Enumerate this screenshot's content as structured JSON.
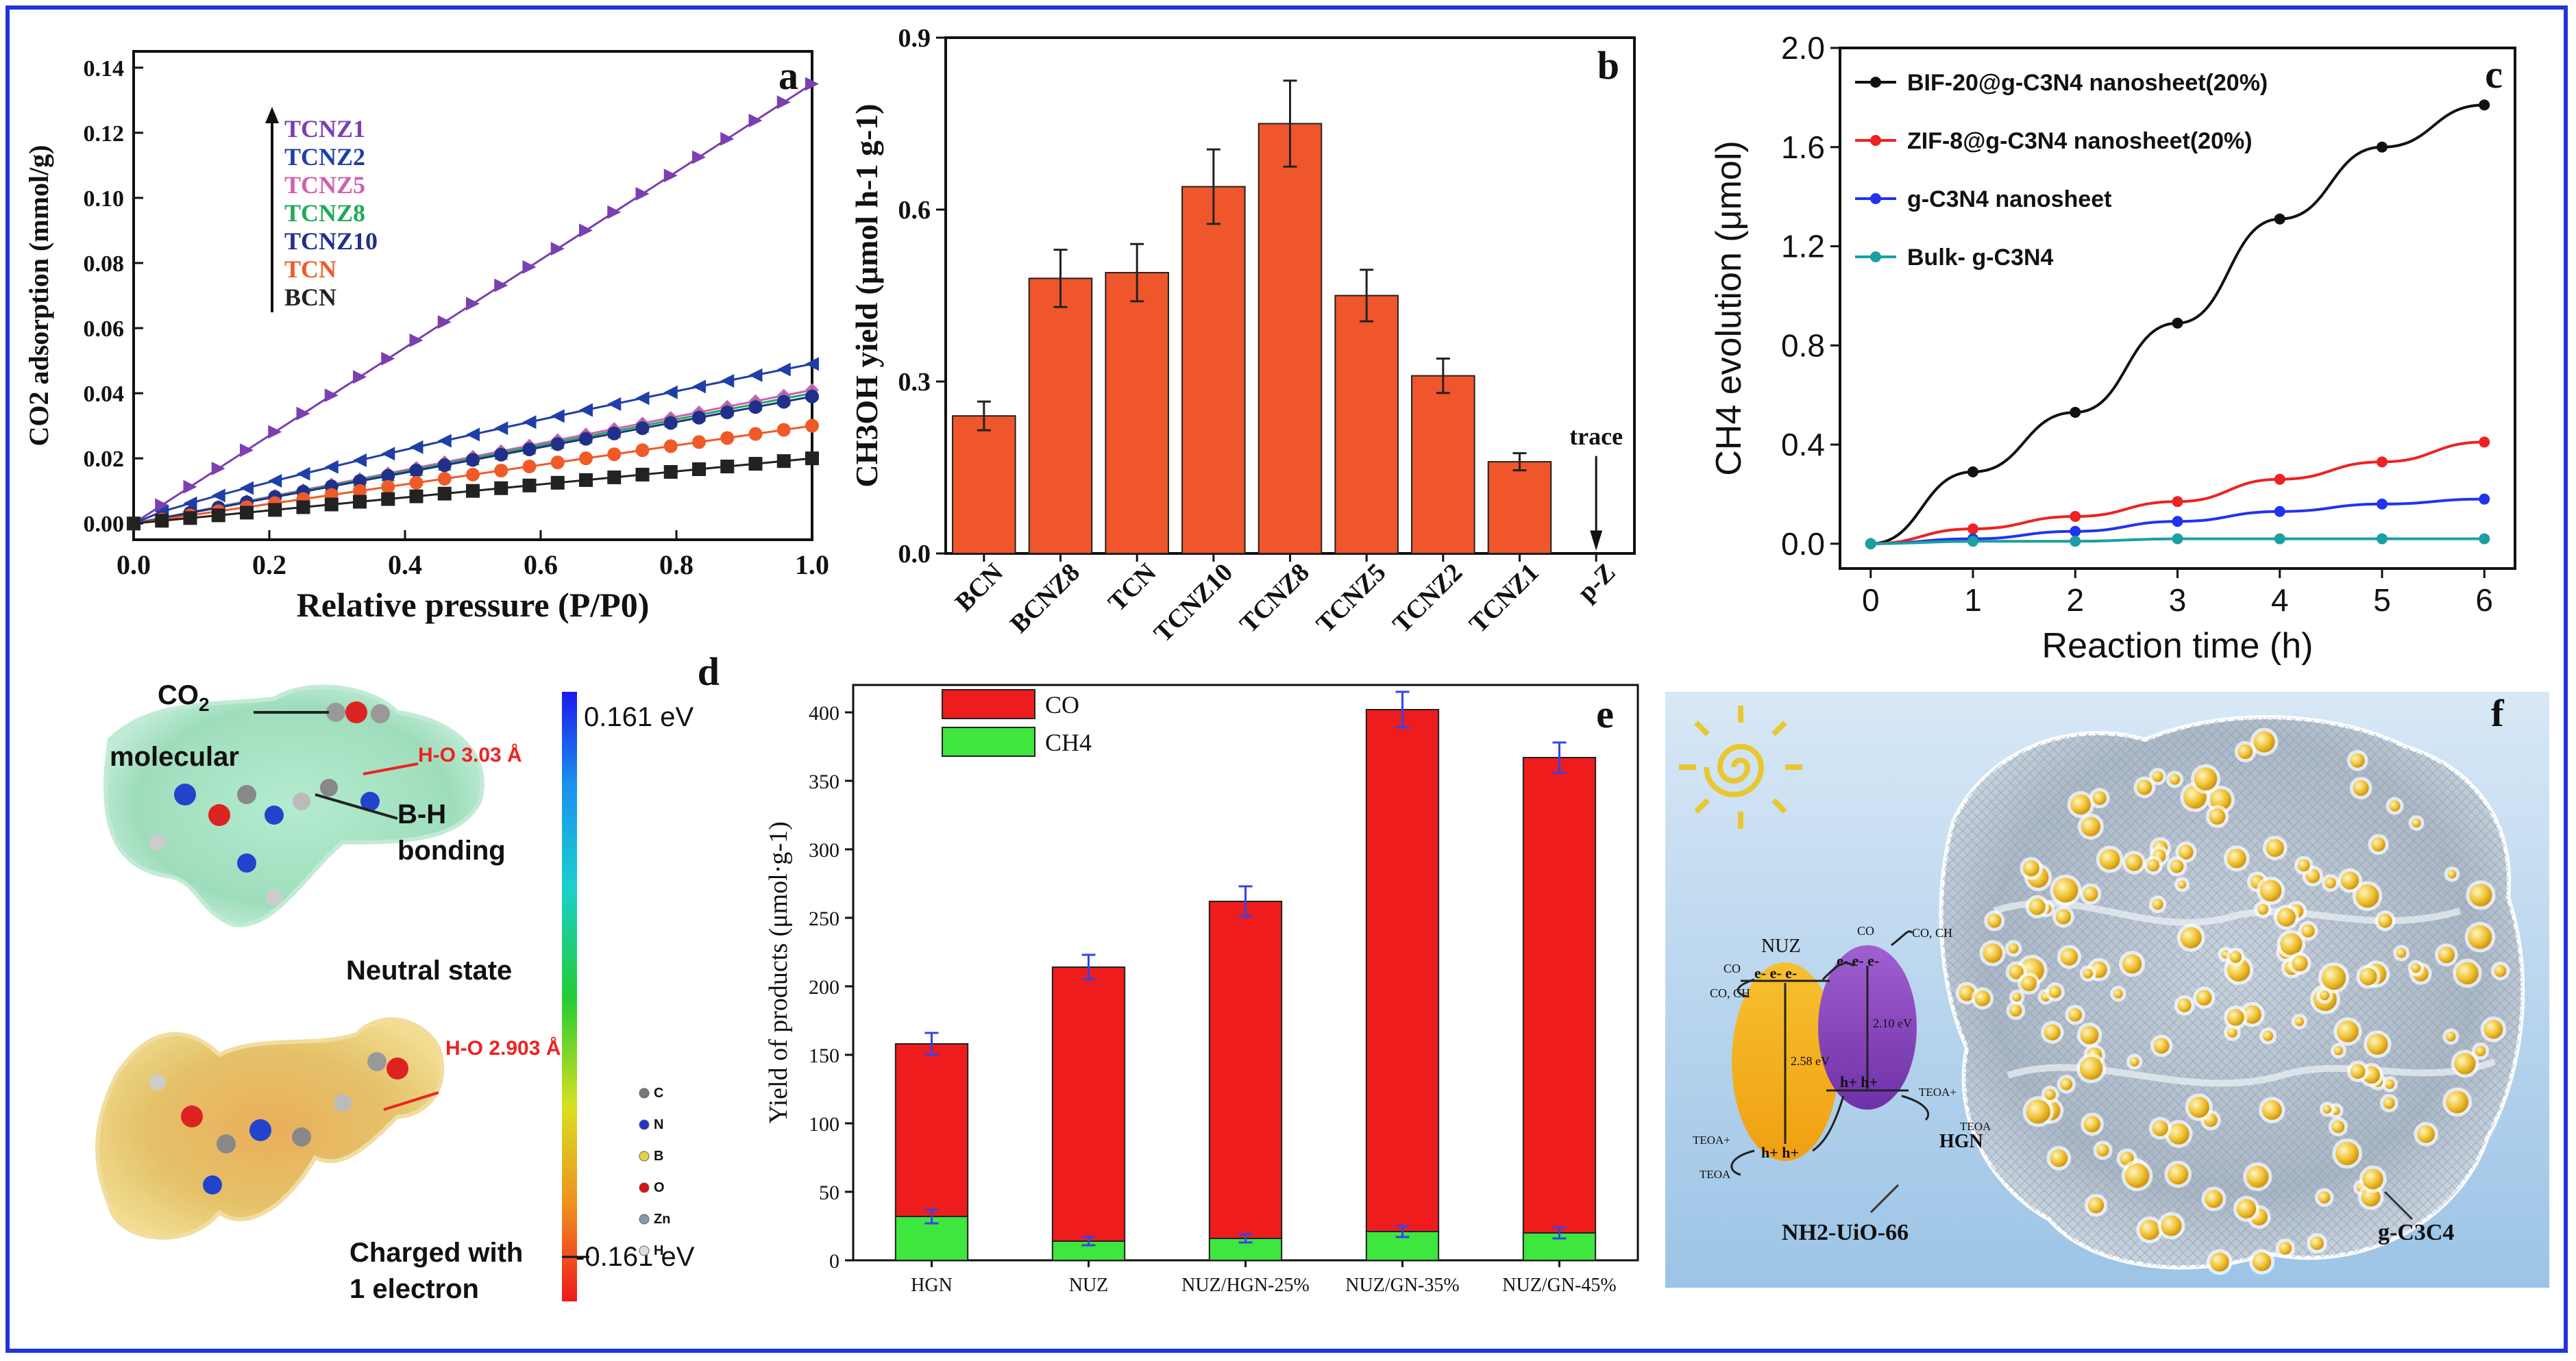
{
  "figure": {
    "border_color": "#2233d8",
    "panel_letters": [
      "a",
      "b",
      "c",
      "d",
      "e",
      "f"
    ]
  },
  "chart_data": [
    {
      "id": "a",
      "type": "scatter",
      "panel_letter": "a",
      "title": "",
      "xlabel": "Relative pressure (P/P0)",
      "ylabel": "CO2 adsorption (mmol/g)",
      "xlim": [
        0,
        1.0
      ],
      "ylim": [
        -0.005,
        0.145
      ],
      "xticks": [
        "0.0",
        "0.2",
        "0.4",
        "0.6",
        "0.8",
        "1.0"
      ],
      "yticks": [
        "0.00",
        "0.02",
        "0.04",
        "0.06",
        "0.08",
        "0.10",
        "0.12",
        "0.14"
      ],
      "legend_arrow": true,
      "series": [
        {
          "name": "TCNZ1",
          "color": "#7b3fb0",
          "marker": "triangle-right",
          "end": 0.135
        },
        {
          "name": "TCNZ2",
          "color": "#1f3fa8",
          "marker": "triangle-left",
          "end": 0.049
        },
        {
          "name": "TCNZ5",
          "color": "#d060b0",
          "marker": "diamond",
          "end": 0.041
        },
        {
          "name": "TCNZ8",
          "color": "#1faa5a",
          "marker": "triangle-up",
          "end": 0.04
        },
        {
          "name": "TCNZ10",
          "color": "#20308a",
          "marker": "circle",
          "end": 0.039
        },
        {
          "name": "TCN",
          "color": "#f05a28",
          "marker": "circle",
          "end": 0.03
        },
        {
          "name": "BCN",
          "color": "#222222",
          "marker": "square",
          "end": 0.02
        }
      ]
    },
    {
      "id": "b",
      "type": "bar",
      "panel_letter": "b",
      "xlabel": "",
      "ylabel": "CH3OH yield (μmol h-1 g-1)",
      "ylim": [
        0,
        0.9
      ],
      "yticks": [
        "0.0",
        "0.3",
        "0.6",
        "0.9"
      ],
      "categories": [
        "BCN",
        "BCNZ8",
        "TCN",
        "TCNZ10",
        "TCNZ8",
        "TCNZ5",
        "TCNZ2",
        "TCNZ1",
        "p-Z"
      ],
      "values": [
        0.24,
        0.48,
        0.49,
        0.64,
        0.75,
        0.45,
        0.31,
        0.16,
        0
      ],
      "errors": [
        0.025,
        0.05,
        0.05,
        0.065,
        0.075,
        0.045,
        0.03,
        0.015,
        0
      ],
      "bar_color": "#f0562b",
      "annotation": "trace"
    },
    {
      "id": "c",
      "type": "line",
      "panel_letter": "c",
      "xlabel": "Reaction time (h)",
      "ylabel": "CH4 evolution (μmol)",
      "xlim": [
        -0.3,
        6.3
      ],
      "ylim": [
        -0.1,
        2.0
      ],
      "xticks": [
        "0",
        "1",
        "2",
        "3",
        "4",
        "5",
        "6"
      ],
      "yticks": [
        "0.0",
        "0.4",
        "0.8",
        "1.2",
        "1.6",
        "2.0"
      ],
      "x": [
        0,
        1,
        2,
        3,
        4,
        5,
        6
      ],
      "series": [
        {
          "name": "BIF-20@g-C3N4 nanosheet(20%)",
          "color": "#111111",
          "values": [
            0,
            0.29,
            0.53,
            0.89,
            1.31,
            1.6,
            1.77
          ]
        },
        {
          "name": "ZIF-8@g-C3N4 nanosheet(20%)",
          "color": "#ee2222",
          "values": [
            0,
            0.06,
            0.11,
            0.17,
            0.26,
            0.33,
            0.41
          ]
        },
        {
          "name": "g-C3N4 nanosheet",
          "color": "#2233ee",
          "values": [
            0,
            0.02,
            0.05,
            0.09,
            0.13,
            0.16,
            0.18
          ]
        },
        {
          "name": "Bulk- g-C3N4",
          "color": "#1aa0a0",
          "values": [
            0,
            0.01,
            0.01,
            0.02,
            0.02,
            0.02,
            0.02
          ]
        }
      ]
    },
    {
      "id": "e",
      "type": "bar",
      "stacked": true,
      "panel_letter": "e",
      "xlabel": "",
      "ylabel": "Yield of products (μmol·g-1)",
      "ylim": [
        0,
        420
      ],
      "yticks": [
        "0",
        "50",
        "100",
        "150",
        "200",
        "250",
        "300",
        "350",
        "400"
      ],
      "categories": [
        "HGN",
        "NUZ",
        "NUZ/HGN-25%",
        "NUZ/GN-35%",
        "NUZ/GN-45%"
      ],
      "series": [
        {
          "name": "CH4",
          "color": "#3ee63e",
          "values": [
            32,
            14,
            16,
            21,
            20
          ],
          "errors": [
            5,
            3,
            3,
            4,
            4
          ]
        },
        {
          "name": "CO",
          "color": "#ee1c1c",
          "values": [
            126,
            200,
            246,
            381,
            347
          ],
          "errors": [
            8,
            9,
            11,
            13,
            11
          ]
        }
      ]
    }
  ],
  "panel_d": {
    "letter": "d",
    "co2_label_main": "CO",
    "co2_label_sub": "2",
    "co2_label_tail": "molecular",
    "ho1": "H-O 3.03 Å",
    "bh_line1": "B-H",
    "bh_line2": "bonding",
    "neutral": "Neutral state",
    "ho2": "H-O 2.903 Å",
    "charged1": "Charged with",
    "charged2": "1 electron",
    "scale_top": "0.161 eV",
    "scale_bottom": "-0.161 eV",
    "atoms": [
      "C",
      "N",
      "B",
      "O",
      "Zn",
      "H"
    ],
    "atom_colors": [
      "#777777",
      "#2233cc",
      "#e8d04a",
      "#dd1111",
      "#8899aa",
      "#dddddd"
    ]
  },
  "panel_f": {
    "letter": "f",
    "nuz": "NUZ",
    "hgn": "HGN",
    "co2_left": "CO",
    "co_ch4_left": "CO, CH",
    "co2_right": "CO",
    "co_ch4_right": "CO, CH",
    "teoa_plus": "TEOA+",
    "teoa": "TEOA",
    "gap_yellow": "2.58 eV",
    "gap_purple": "2.10 eV",
    "electrons": "e- e- e-",
    "holes": "h+ h+",
    "uio_label": "NH2-UiO-66",
    "gcn_label": "g-C3C4"
  }
}
